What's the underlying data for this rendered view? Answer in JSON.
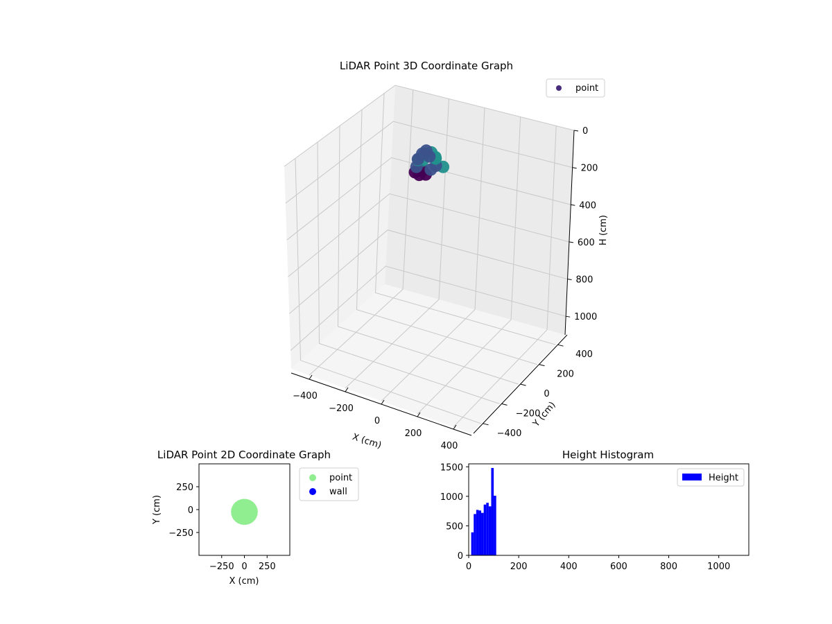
{
  "chart_data": [
    {
      "type": "scatter3d",
      "title": "LiDAR Point 3D Coordinate Graph",
      "xlabel": "X (cm)",
      "ylabel": "Y (cm)",
      "zlabel": "H (cm)",
      "xlim": [
        -500,
        500
      ],
      "ylim": [
        -500,
        500
      ],
      "zlim": [
        0,
        1100
      ],
      "z_inverted": true,
      "xticks": [
        "−400",
        "−200",
        "0",
        "200",
        "400"
      ],
      "yticks": [
        "−400",
        "−200",
        "0",
        "200",
        "400"
      ],
      "zticks": [
        "0",
        "200",
        "400",
        "600",
        "800",
        "1000"
      ],
      "grid": true,
      "legend": {
        "position": "top-right",
        "entries": [
          "point"
        ]
      },
      "series": [
        {
          "name": "point",
          "color": "#472d7b",
          "colormap": [
            "#440154",
            "#3b528b",
            "#21918c",
            "#5ec962"
          ],
          "points": [
            [
              -50,
              -20,
              60
            ],
            [
              -30,
              10,
              40
            ],
            [
              0,
              20,
              30
            ],
            [
              30,
              10,
              50
            ],
            [
              50,
              -20,
              70
            ],
            [
              40,
              -50,
              80
            ],
            [
              0,
              -60,
              90
            ],
            [
              -40,
              -50,
              85
            ],
            [
              -60,
              0,
              75
            ],
            [
              -20,
              -30,
              20
            ],
            [
              20,
              -30,
              25
            ],
            [
              60,
              30,
              95
            ],
            [
              -55,
              30,
              90
            ],
            [
              10,
              40,
              60
            ],
            [
              -10,
              -10,
              10
            ],
            [
              0,
              -90,
              100
            ],
            [
              30,
              -80,
              95
            ],
            [
              -30,
              -80,
              98
            ]
          ]
        }
      ]
    },
    {
      "type": "scatter",
      "title": "LiDAR Point 2D Coordinate Graph",
      "xlabel": "X (cm)",
      "ylabel": "Y (cm)",
      "xlim": [
        -500,
        500
      ],
      "ylim": [
        -500,
        500
      ],
      "xticks": [
        "−250",
        "0",
        "250"
      ],
      "yticks": [
        "250",
        "0",
        "−250"
      ],
      "legend": {
        "position": "outside-right",
        "entries": [
          "point",
          "wall"
        ]
      },
      "series": [
        {
          "name": "point",
          "color": "#90ee90",
          "x_range": [
            -110,
            110
          ],
          "y_range": [
            -130,
            80
          ]
        },
        {
          "name": "wall",
          "color": "#0000ff",
          "points": []
        }
      ]
    },
    {
      "type": "bar",
      "title": "Height Histogram",
      "xlabel": "",
      "ylabel": "",
      "xlim": [
        0,
        1120
      ],
      "ylim": [
        0,
        1550
      ],
      "xticks": [
        "0",
        "200",
        "400",
        "600",
        "800",
        "1000"
      ],
      "yticks": [
        "0",
        "500",
        "1000",
        "1500"
      ],
      "legend": {
        "position": "top-right",
        "entries": [
          "Height"
        ]
      },
      "series": [
        {
          "name": "Height",
          "color": "#0000ff",
          "bins": [
            [
              10,
              390
            ],
            [
              20,
              700
            ],
            [
              30,
              770
            ],
            [
              40,
              760
            ],
            [
              50,
              720
            ],
            [
              60,
              860
            ],
            [
              70,
              890
            ],
            [
              80,
              830
            ],
            [
              90,
              1480
            ],
            [
              100,
              1010
            ]
          ],
          "bin_width": 10
        }
      ]
    }
  ]
}
